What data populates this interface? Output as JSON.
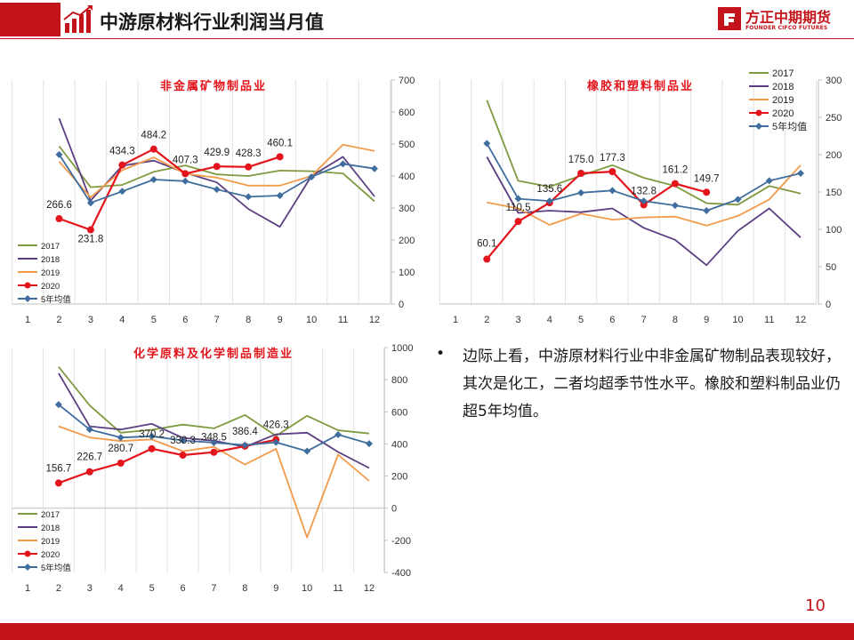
{
  "header": {
    "title": "中游原材料行业利润当月值",
    "logo_cn": "方正中期期货",
    "logo_en": "FOUNDER CIFCO FUTURES"
  },
  "colors": {
    "accent": "#c4141b",
    "s2017": "#7f9a3f",
    "s2018": "#5b3f82",
    "s2019": "#f29b4b",
    "s2020": "#e3141b",
    "avg5": "#3f6d9e"
  },
  "chart_data": [
    {
      "type": "line",
      "title": "非金属矿物制品业",
      "x": [
        1,
        2,
        3,
        4,
        5,
        6,
        7,
        8,
        9,
        10,
        11,
        12
      ],
      "ylim": [
        0,
        700
      ],
      "yticks": [
        0,
        100,
        200,
        300,
        400,
        500,
        600,
        700
      ],
      "legend": "bottom-left",
      "series": [
        {
          "name": "2017",
          "x": [
            2,
            3,
            4,
            5,
            6,
            7,
            8,
            9,
            10,
            11,
            12
          ],
          "values": [
            493,
            365,
            372,
            413,
            433,
            405,
            400,
            417,
            415,
            408,
            321
          ]
        },
        {
          "name": "2018",
          "x": [
            2,
            3,
            4,
            5,
            6,
            7,
            8,
            9,
            10,
            11,
            12
          ],
          "values": [
            580,
            323,
            432,
            448,
            410,
            380,
            297,
            241,
            400,
            460,
            336
          ]
        },
        {
          "name": "2019",
          "x": [
            2,
            3,
            4,
            5,
            6,
            7,
            8,
            9,
            10,
            11,
            12
          ],
          "values": [
            445,
            333,
            418,
            458,
            407,
            395,
            370,
            370,
            400,
            498,
            478
          ]
        },
        {
          "name": "2020",
          "x": [
            2,
            3,
            4,
            5,
            6,
            7,
            8,
            9
          ],
          "values": [
            266.6,
            231.8,
            434.3,
            484.2,
            407.3,
            429.9,
            428.3,
            460.1
          ],
          "labels": [
            "266.6",
            "231.8",
            "434.3",
            "484.2",
            "407.3",
            "429.9",
            "428.3",
            "460.1"
          ]
        },
        {
          "name": "5年均值",
          "x": [
            2,
            3,
            4,
            5,
            6,
            7,
            8,
            9,
            10,
            11,
            12
          ],
          "values": [
            467,
            316,
            352,
            389,
            384,
            358,
            335,
            339,
            397,
            438,
            423
          ]
        }
      ]
    },
    {
      "type": "line",
      "title": "橡胶和塑料制品业",
      "x": [
        1,
        2,
        3,
        4,
        5,
        6,
        7,
        8,
        9,
        10,
        11,
        12
      ],
      "ylim": [
        0,
        300
      ],
      "yticks": [
        0,
        50,
        100,
        150,
        200,
        250,
        300
      ],
      "legend": "top-right",
      "series": [
        {
          "name": "2017",
          "x": [
            2,
            3,
            4,
            5,
            6,
            7,
            8,
            9,
            10,
            11,
            12
          ],
          "values": [
            273,
            165,
            157,
            172,
            186,
            169,
            158,
            135,
            133,
            158,
            148
          ]
        },
        {
          "name": "2018",
          "x": [
            2,
            3,
            4,
            5,
            6,
            7,
            8,
            9,
            10,
            11,
            12
          ],
          "values": [
            197,
            122,
            125,
            123,
            128,
            102,
            86,
            52,
            98,
            128,
            89
          ]
        },
        {
          "name": "2019",
          "x": [
            2,
            3,
            4,
            5,
            6,
            7,
            8,
            9,
            10,
            11,
            12
          ],
          "values": [
            136,
            128,
            106,
            121,
            113,
            116,
            117,
            105,
            118,
            140,
            186
          ]
        },
        {
          "name": "2020",
          "x": [
            2,
            3,
            4,
            5,
            6,
            7,
            8,
            9
          ],
          "values": [
            60.1,
            110.5,
            135.6,
            175.0,
            177.3,
            132.8,
            161.2,
            149.7
          ],
          "labels": [
            "60.1",
            "110.5",
            "135.6",
            "175.0",
            "177.3",
            "132.8",
            "161.2",
            "149.7"
          ]
        },
        {
          "name": "5年均值",
          "x": [
            2,
            3,
            4,
            5,
            6,
            7,
            8,
            9,
            10,
            11,
            12
          ],
          "values": [
            215,
            141,
            138,
            149,
            152,
            138,
            132,
            125,
            140,
            165,
            175
          ]
        }
      ]
    },
    {
      "type": "line",
      "title": "化学原料及化学制品制造业",
      "x": [
        1,
        2,
        3,
        4,
        5,
        6,
        7,
        8,
        9,
        10,
        11,
        12
      ],
      "ylim": [
        -400,
        1000
      ],
      "yticks": [
        -400,
        -200,
        0,
        200,
        400,
        600,
        800,
        1000
      ],
      "legend": "bottom-left",
      "series": [
        {
          "name": "2017",
          "x": [
            2,
            3,
            4,
            5,
            6,
            7,
            8,
            9,
            10,
            11,
            12
          ],
          "values": [
            880,
            640,
            470,
            488,
            520,
            497,
            580,
            450,
            575,
            485,
            465
          ]
        },
        {
          "name": "2018",
          "x": [
            2,
            3,
            4,
            5,
            6,
            7,
            8,
            9,
            10,
            11,
            12
          ],
          "values": [
            840,
            510,
            490,
            525,
            438,
            420,
            382,
            460,
            470,
            350,
            250
          ]
        },
        {
          "name": "2019",
          "x": [
            2,
            3,
            4,
            5,
            6,
            7,
            8,
            9,
            10,
            11,
            12
          ],
          "values": [
            510,
            440,
            418,
            428,
            355,
            382,
            272,
            370,
            -182,
            333,
            170
          ]
        },
        {
          "name": "2020",
          "x": [
            2,
            3,
            4,
            5,
            6,
            7,
            8,
            9
          ],
          "values": [
            156.7,
            226.7,
            280.7,
            370.2,
            330.3,
            348.5,
            386.4,
            426.3
          ],
          "labels": [
            "156.7",
            "226.7",
            "280.7",
            "370.2",
            "330.3",
            "348.5",
            "386.4",
            "426.3"
          ]
        },
        {
          "name": "5年均值",
          "x": [
            2,
            3,
            4,
            5,
            6,
            7,
            8,
            9,
            10,
            11,
            12
          ],
          "values": [
            645,
            490,
            440,
            448,
            422,
            408,
            393,
            410,
            355,
            458,
            402
          ]
        }
      ]
    }
  ],
  "commentary": {
    "bullet": "•",
    "text": "边际上看，中游原材料行业中非金属矿物制品表现较好，其次是化工，二者均超季节性水平。橡胶和塑料制品业仍超5年均值。"
  },
  "page_number": "10"
}
